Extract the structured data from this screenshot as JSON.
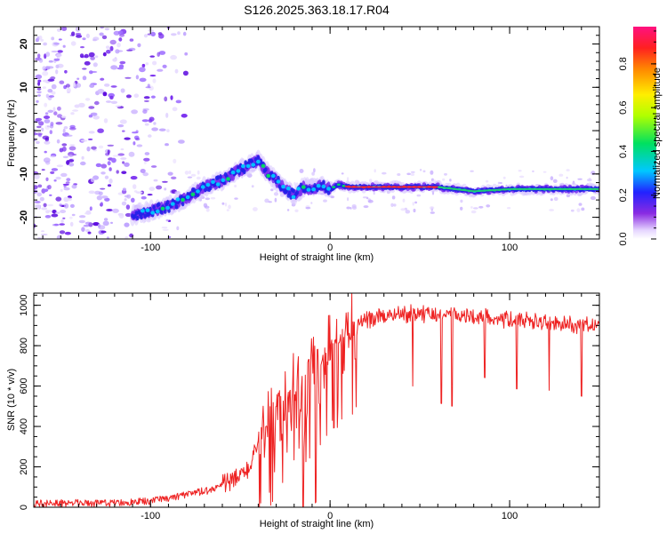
{
  "chart_data": [
    {
      "type": "heatmap",
      "title": "S126.2025.363.18.17.R04",
      "xlabel": "Height of straight line (km)",
      "ylabel": "Frequency (Hz)",
      "xlim": [
        -165,
        150
      ],
      "ylim": [
        -25,
        24
      ],
      "xticks": [
        -100,
        0,
        100
      ],
      "yticks": [
        -20,
        -10,
        0,
        10,
        20
      ],
      "colorbar": {
        "label": "Normalized spectral amplitude",
        "range": [
          0.0,
          0.97
        ],
        "ticks": [
          0.0,
          0.2,
          0.4,
          0.6,
          0.8
        ]
      },
      "ridge": {
        "x": [
          -110,
          -100,
          -90,
          -80,
          -70,
          -60,
          -50,
          -45,
          -40,
          -35,
          -30,
          -25,
          -20,
          -15,
          -10,
          -5,
          0,
          5,
          10,
          20,
          40,
          60,
          80,
          100,
          120,
          140,
          150
        ],
        "y": [
          -19.5,
          -18.5,
          -17.5,
          -15.5,
          -13,
          -11.5,
          -9,
          -8,
          -7,
          -9.5,
          -11.5,
          -13.5,
          -15,
          -13,
          -13.5,
          -12.5,
          -13.5,
          -12.5,
          -13,
          -13,
          -13,
          -13,
          -14,
          -13.5,
          -13.5,
          -13.5,
          -13.5
        ]
      }
    },
    {
      "type": "line",
      "title": "",
      "xlabel": "Height of straight line (km)",
      "ylabel": "SNR (10 * v/v)",
      "xlim": [
        -165,
        150
      ],
      "ylim": [
        0,
        1060
      ],
      "xticks": [
        -100,
        0,
        100
      ],
      "yticks": [
        0,
        200,
        400,
        600,
        800,
        1000
      ],
      "series": [
        {
          "color": "#ee2222",
          "x": [
            -165,
            -150,
            -130,
            -110,
            -100,
            -90,
            -80,
            -70,
            -60,
            -50,
            -45,
            -40,
            -35,
            -30,
            -25,
            -20,
            -15,
            -10,
            -5,
            0,
            5,
            10,
            15,
            20,
            25,
            30,
            40,
            50,
            60,
            70,
            80,
            90,
            100,
            110,
            120,
            130,
            140,
            150
          ],
          "y": [
            20,
            20,
            20,
            25,
            30,
            45,
            60,
            80,
            110,
            150,
            200,
            300,
            400,
            500,
            550,
            600,
            640,
            700,
            760,
            800,
            830,
            870,
            900,
            920,
            940,
            950,
            960,
            960,
            955,
            950,
            945,
            940,
            930,
            920,
            910,
            905,
            900,
            900
          ]
        }
      ]
    }
  ],
  "colors": {
    "line": "#ee2222",
    "background": "#ffffff"
  }
}
